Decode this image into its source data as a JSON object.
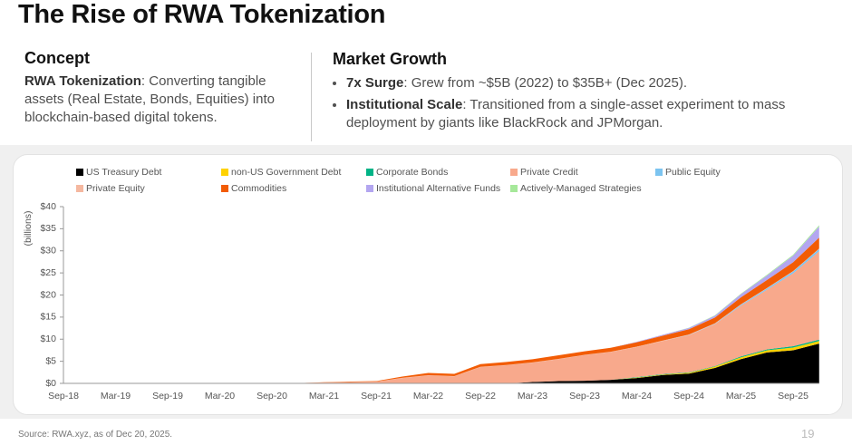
{
  "header": {
    "title": "The Rise of RWA Tokenization"
  },
  "concept": {
    "heading": "Concept",
    "lead": "RWA Tokenization",
    "text": ": Converting tangible assets (Real Estate, Bonds, Equities) into blockchain-based digital tokens."
  },
  "growth": {
    "heading": "Market Growth",
    "bullets": [
      {
        "lead": "7x Surge",
        "text": ": Grew from ~$5B (2022) to $35B+ (Dec 2025)."
      },
      {
        "lead": "Institutional Scale",
        "text": ": Transitioned from a single-asset experiment to mass deployment by giants like BlackRock and JPMorgan."
      }
    ]
  },
  "chart_data": {
    "type": "stacked_area",
    "ylabel": "(billions)",
    "categories": [
      "Sep-18",
      null,
      "Mar-19",
      null,
      "Sep-19",
      null,
      "Mar-20",
      null,
      "Sep-20",
      null,
      "Mar-21",
      null,
      "Sep-21",
      null,
      "Mar-22",
      null,
      "Sep-22",
      null,
      "Mar-23",
      null,
      "Sep-23",
      null,
      "Mar-24",
      null,
      "Sep-24",
      null,
      "Mar-25",
      null,
      "Sep-25",
      null
    ],
    "ylim": [
      0,
      40
    ],
    "yticks": [
      {
        "value": 0,
        "label": "$0"
      },
      {
        "value": 5,
        "label": "$5"
      },
      {
        "value": 10,
        "label": "$10"
      },
      {
        "value": 15,
        "label": "$15"
      },
      {
        "value": 20,
        "label": "$20"
      },
      {
        "value": 25,
        "label": "$25"
      },
      {
        "value": 30,
        "label": "$30"
      },
      {
        "value": 35,
        "label": "$35"
      },
      {
        "value": 40,
        "label": "$40"
      }
    ],
    "series": [
      {
        "name": "US Treasury Debt",
        "color": "#000000",
        "values": [
          0,
          0,
          0,
          0,
          0,
          0,
          0,
          0,
          0,
          0,
          0,
          0,
          0,
          0,
          0,
          0,
          0,
          0,
          0.3,
          0.5,
          0.6,
          0.8,
          1.2,
          1.9,
          2.2,
          3.5,
          5.5,
          7,
          7.5,
          9
        ]
      },
      {
        "name": "non-US Government Debt",
        "color": "#ffd200",
        "values": [
          0,
          0,
          0,
          0,
          0,
          0,
          0,
          0,
          0,
          0,
          0,
          0,
          0,
          0,
          0,
          0,
          0,
          0,
          0,
          0,
          0,
          0,
          0.1,
          0.1,
          0.2,
          0.3,
          0.4,
          0.5,
          0.6,
          0.6
        ]
      },
      {
        "name": "Corporate Bonds",
        "color": "#00b386",
        "values": [
          0,
          0,
          0,
          0,
          0,
          0,
          0,
          0,
          0,
          0,
          0,
          0,
          0,
          0,
          0,
          0,
          0,
          0,
          0,
          0,
          0,
          0,
          0.1,
          0.1,
          0.1,
          0.1,
          0.2,
          0.2,
          0.3,
          0.3
        ]
      },
      {
        "name": "Private Credit",
        "color": "#f8a98c",
        "values": [
          0,
          0,
          0,
          0,
          0,
          0,
          0,
          0,
          0,
          0.05,
          0.2,
          0.3,
          0.4,
          1.2,
          1.8,
          1.6,
          3.7,
          4.1,
          4.4,
          5,
          5.8,
          6.3,
          6.8,
          7.5,
          8.4,
          9.5,
          11.5,
          13.5,
          16.5,
          20
        ]
      },
      {
        "name": "Public Equity",
        "color": "#7cc4f0",
        "values": [
          0,
          0,
          0,
          0,
          0,
          0,
          0,
          0,
          0,
          0,
          0,
          0,
          0,
          0,
          0,
          0,
          0,
          0,
          0,
          0,
          0,
          0,
          0,
          0,
          0.05,
          0.1,
          0.2,
          0.3,
          0.4,
          0.5
        ]
      },
      {
        "name": "Private Equity",
        "color": "#f5b8a0",
        "values": [
          0,
          0,
          0,
          0,
          0,
          0,
          0,
          0,
          0,
          0,
          0,
          0,
          0,
          0.05,
          0.05,
          0.05,
          0.05,
          0.05,
          0.05,
          0.05,
          0.05,
          0.05,
          0.1,
          0.1,
          0.1,
          0.1,
          0.1,
          0.1,
          0.1,
          0.1
        ]
      },
      {
        "name": "Commodities",
        "color": "#f25c05",
        "values": [
          0,
          0,
          0,
          0,
          0,
          0,
          0,
          0,
          0,
          0,
          0.05,
          0.1,
          0.1,
          0.3,
          0.5,
          0.5,
          0.6,
          0.7,
          0.7,
          0.8,
          0.8,
          0.9,
          1,
          1.1,
          1.2,
          1.3,
          1.6,
          1.8,
          2,
          2.5
        ]
      },
      {
        "name": "Institutional Alternative Funds",
        "color": "#b3a6f0",
        "values": [
          0,
          0,
          0,
          0,
          0,
          0,
          0,
          0,
          0,
          0,
          0,
          0,
          0,
          0,
          0,
          0,
          0,
          0,
          0,
          0,
          0,
          0,
          0.1,
          0.2,
          0.3,
          0.4,
          0.7,
          1,
          1.5,
          2.5
        ]
      },
      {
        "name": "Actively-Managed Strategies",
        "color": "#a6e89a",
        "values": [
          0,
          0,
          0,
          0,
          0,
          0,
          0,
          0,
          0,
          0,
          0,
          0,
          0,
          0,
          0,
          0,
          0,
          0,
          0,
          0,
          0,
          0,
          0,
          0,
          0.05,
          0.1,
          0.1,
          0.2,
          0.2,
          0.3
        ]
      }
    ]
  },
  "footer": {
    "source": "Source: RWA.xyz, as of Dec 20, 2025.",
    "page": "19"
  }
}
